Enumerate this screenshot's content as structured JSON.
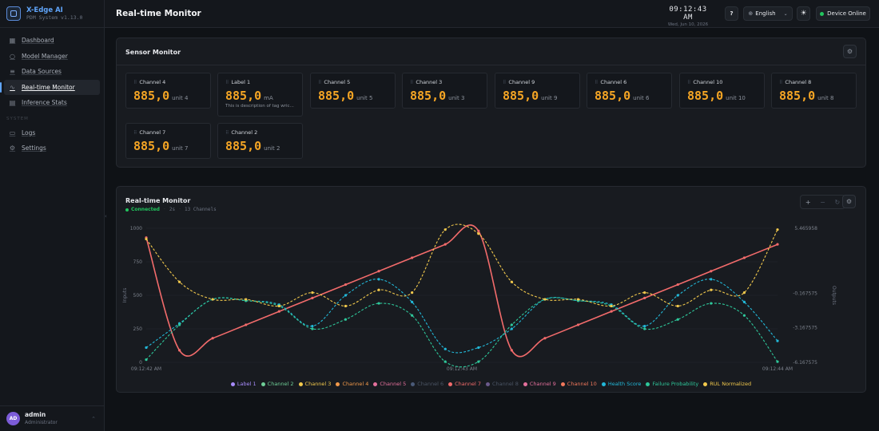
{
  "brand": {
    "name": "X-Edge AI",
    "subtitle": "PDM System v1.13.0"
  },
  "nav": {
    "items": [
      {
        "label": "Dashboard",
        "icon": "grid-icon",
        "active": false
      },
      {
        "label": "Model Manager",
        "icon": "circle-icon",
        "active": false
      },
      {
        "label": "Data Sources",
        "icon": "database-icon",
        "active": false
      },
      {
        "label": "Real-time Monitor",
        "icon": "activity-icon",
        "active": true
      },
      {
        "label": "Inference Stats",
        "icon": "bar-chart-icon",
        "active": false
      }
    ],
    "section_label": "SYSTEM",
    "system_items": [
      {
        "label": "Logs",
        "icon": "file-icon"
      },
      {
        "label": "Settings",
        "icon": "gear-icon"
      }
    ]
  },
  "user": {
    "initials": "AD",
    "name": "admin",
    "role": "Administrator"
  },
  "header": {
    "title": "Real-time Monitor",
    "time": "09:12:43 AM",
    "date": "Wed, Jun 10, 2026",
    "help_label": "?",
    "language": "English",
    "status": "Device Online"
  },
  "sensor_panel": {
    "title": "Sensor Monitor",
    "cards": [
      {
        "name": "Channel 4",
        "value": "885,0",
        "unit": "unit 4",
        "desc": ""
      },
      {
        "name": "Label 1",
        "value": "885,0",
        "unit": "mA",
        "desc": "This is description of tag wric..."
      },
      {
        "name": "Channel 5",
        "value": "885,0",
        "unit": "unit 5",
        "desc": ""
      },
      {
        "name": "Channel 3",
        "value": "885,0",
        "unit": "unit 3",
        "desc": ""
      },
      {
        "name": "Channel 9",
        "value": "885,0",
        "unit": "unit 9",
        "desc": ""
      },
      {
        "name": "Channel 6",
        "value": "885,0",
        "unit": "unit 6",
        "desc": ""
      },
      {
        "name": "Channel 10",
        "value": "885,0",
        "unit": "unit 10",
        "desc": ""
      },
      {
        "name": "Channel 8",
        "value": "885,0",
        "unit": "unit 8",
        "desc": ""
      },
      {
        "name": "Channel 7",
        "value": "885,0",
        "unit": "unit 7",
        "desc": ""
      },
      {
        "name": "Channel 2",
        "value": "885,0",
        "unit": "unit 2",
        "desc": ""
      }
    ]
  },
  "chart_panel": {
    "title": "Real-time Monitor",
    "connection": "Connected",
    "interval": "2s",
    "channels": "13 Channels",
    "zoom_in": "+",
    "zoom_out": "−",
    "reset": "↻"
  },
  "colors": {
    "accent": "#60a5fa",
    "value": "#f5a524",
    "online": "#22c55e",
    "red": "#f26b6b",
    "cyan": "#22b8d8",
    "green": "#2ec79a",
    "yellow": "#f2c94c"
  },
  "chart_data": {
    "type": "line",
    "x_labels": [
      "09:12:42 AM",
      "09:12:43 AM",
      "09:12:44 AM"
    ],
    "ylabel_left": "Inputs",
    "ylabel_right": "Outputs",
    "y_left": {
      "range": [
        0,
        1000
      ],
      "ticks": [
        "0",
        "250",
        "500",
        "750",
        "1000"
      ]
    },
    "y_right": {
      "range": [
        -6.167575,
        5.465958
      ],
      "ticks": [
        "-6.167575",
        "-3.167575",
        "-0.167575",
        "5.465958"
      ]
    },
    "x": [
      0,
      1,
      2,
      3,
      4,
      5,
      6,
      7,
      8,
      9,
      10,
      11,
      12,
      13,
      14,
      15,
      16,
      17,
      18,
      19
    ],
    "series": [
      {
        "name": "Channel 7",
        "color": "#f26b6b",
        "style": "solid",
        "axis": "left",
        "values": [
          930,
          90,
          180,
          280,
          380,
          480,
          580,
          680,
          780,
          880,
          980,
          90,
          180,
          280,
          380,
          480,
          580,
          680,
          780,
          880
        ]
      },
      {
        "name": "Health Score",
        "color": "#22b8d8",
        "style": "dashed",
        "axis": "left",
        "values": [
          110,
          290,
          470,
          460,
          430,
          270,
          500,
          620,
          450,
          100,
          110,
          250,
          470,
          460,
          430,
          270,
          500,
          620,
          450,
          160
        ]
      },
      {
        "name": "Failure Probability",
        "color": "#2ec79a",
        "style": "dashed",
        "axis": "left",
        "values": [
          20,
          280,
          470,
          460,
          420,
          250,
          320,
          440,
          350,
          5,
          5,
          280,
          470,
          460,
          420,
          250,
          320,
          440,
          350,
          5
        ]
      },
      {
        "name": "RUL Normalized",
        "color": "#f2c94c",
        "style": "dashed",
        "axis": "left",
        "values": [
          920,
          600,
          470,
          470,
          420,
          520,
          420,
          540,
          520,
          990,
          960,
          600,
          470,
          470,
          420,
          520,
          420,
          540,
          520,
          990
        ]
      }
    ],
    "legend": [
      {
        "name": "Label 1",
        "color": "#a78bfa",
        "dim": false
      },
      {
        "name": "Channel 2",
        "color": "#6fcf97",
        "dim": false
      },
      {
        "name": "Channel 3",
        "color": "#f2c94c",
        "dim": false
      },
      {
        "name": "Channel 4",
        "color": "#f2994a",
        "dim": false
      },
      {
        "name": "Channel 5",
        "color": "#e4709c",
        "dim": false
      },
      {
        "name": "Channel 6",
        "color": "#4a5a78",
        "dim": true
      },
      {
        "name": "Channel 7",
        "color": "#f26b6b",
        "dim": false
      },
      {
        "name": "Channel 8",
        "color": "#6b5a8c",
        "dim": true
      },
      {
        "name": "Channel 9",
        "color": "#e4709c",
        "dim": false
      },
      {
        "name": "Channel 10",
        "color": "#f2785c",
        "dim": false
      },
      {
        "name": "Health Score",
        "color": "#22b8d8",
        "dim": false
      },
      {
        "name": "Failure Probability",
        "color": "#2ec79a",
        "dim": false
      },
      {
        "name": "RUL Normalized",
        "color": "#f2c94c",
        "dim": false
      }
    ]
  }
}
